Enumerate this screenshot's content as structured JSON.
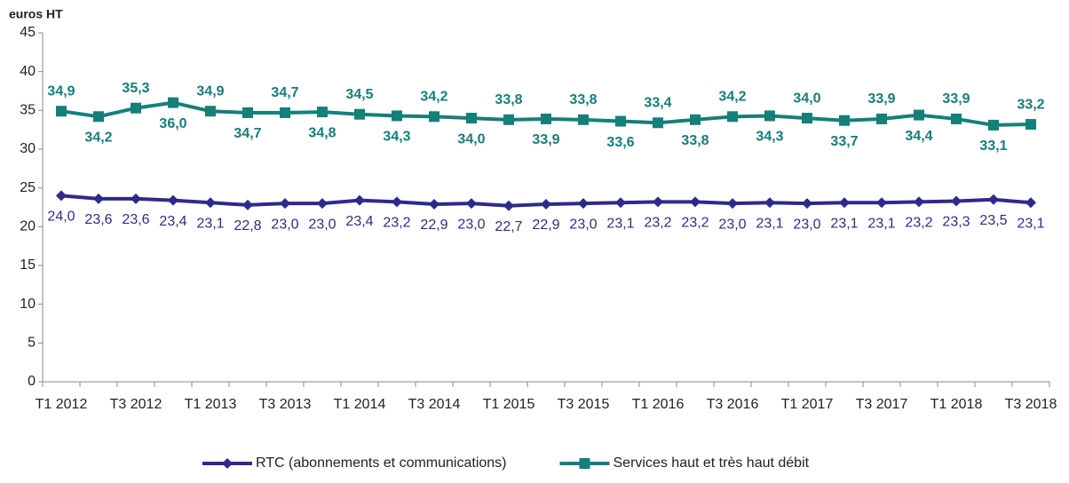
{
  "chart_data": {
    "type": "line",
    "y_label": "euros HT",
    "categories": [
      "T1 2012",
      null,
      "T3 2012",
      null,
      "T1 2013",
      null,
      "T3 2013",
      null,
      "T1 2014",
      null,
      "T3 2014",
      null,
      "T1 2015",
      null,
      "T3 2015",
      null,
      "T1 2016",
      null,
      "T3 2016",
      null,
      "T1 2017",
      null,
      "T3 2017",
      null,
      "T1 2018",
      null,
      "T3 2018"
    ],
    "ylim": [
      0,
      45
    ],
    "yticks": [
      0,
      5,
      10,
      15,
      20,
      25,
      30,
      35,
      40,
      45
    ],
    "grid": false,
    "legend": "bottom",
    "series": [
      {
        "name": "RTC (abonnements et communications)",
        "color": "#2e2a8c",
        "marker": "diamond",
        "values": [
          24.0,
          23.6,
          23.6,
          23.4,
          23.1,
          22.8,
          23.0,
          23.0,
          23.4,
          23.2,
          22.9,
          23.0,
          22.7,
          22.9,
          23.0,
          23.1,
          23.2,
          23.2,
          23.0,
          23.1,
          23.0,
          23.1,
          23.1,
          23.2,
          23.3,
          23.5,
          23.1
        ],
        "value_labels": [
          "24,0",
          "23,6",
          "23,6",
          "23,4",
          "23,1",
          "22,8",
          "23,0",
          "23,0",
          "23,4",
          "23,2",
          "22,9",
          "23,0",
          "22,7",
          "22,9",
          "23,0",
          "23,1",
          "23,2",
          "23,2",
          "23,0",
          "23,1",
          "23,0",
          "23,1",
          "23,1",
          "23,2",
          "23,3",
          "23,5",
          "23,1"
        ]
      },
      {
        "name": "Services haut et très haut débit",
        "color": "#138079",
        "marker": "square",
        "values": [
          34.9,
          34.2,
          35.3,
          36.0,
          34.9,
          34.7,
          34.7,
          34.8,
          34.5,
          34.3,
          34.2,
          34.0,
          33.8,
          33.9,
          33.8,
          33.6,
          33.4,
          33.8,
          34.2,
          34.3,
          34.0,
          33.7,
          33.9,
          34.4,
          33.9,
          33.1,
          33.2
        ],
        "value_labels": [
          "34,9",
          "34,2",
          "35,3",
          "36,0",
          "34,9",
          "34,7",
          "34,7",
          "34,8",
          "34,5",
          "34,3",
          "34,2",
          "34,0",
          "33,8",
          "33,9",
          "33,8",
          "33,6",
          "33,4",
          "33,8",
          "34,2",
          "34,3",
          "34,0",
          "33,7",
          "33,9",
          "34,4",
          "33,9",
          "33,1",
          "33,2"
        ]
      }
    ]
  }
}
